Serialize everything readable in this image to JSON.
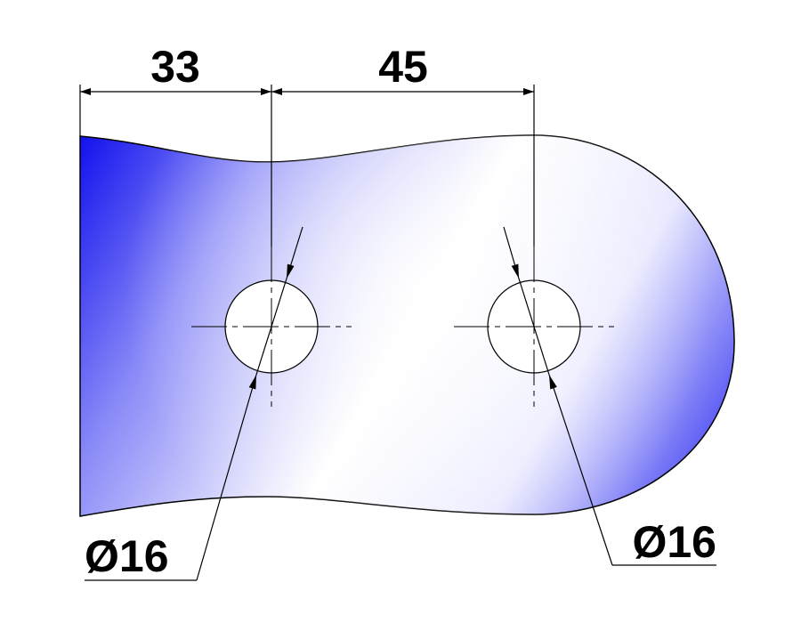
{
  "dimensions": {
    "edge_to_hole1": "33",
    "hole1_to_hole2": "45",
    "hole1_diameter": "Ø16",
    "hole2_diameter": "Ø16"
  },
  "colors": {
    "plate_edge_blue": "#1a1aff",
    "plate_center_white": "#ffffff",
    "line_black": "#000000"
  }
}
